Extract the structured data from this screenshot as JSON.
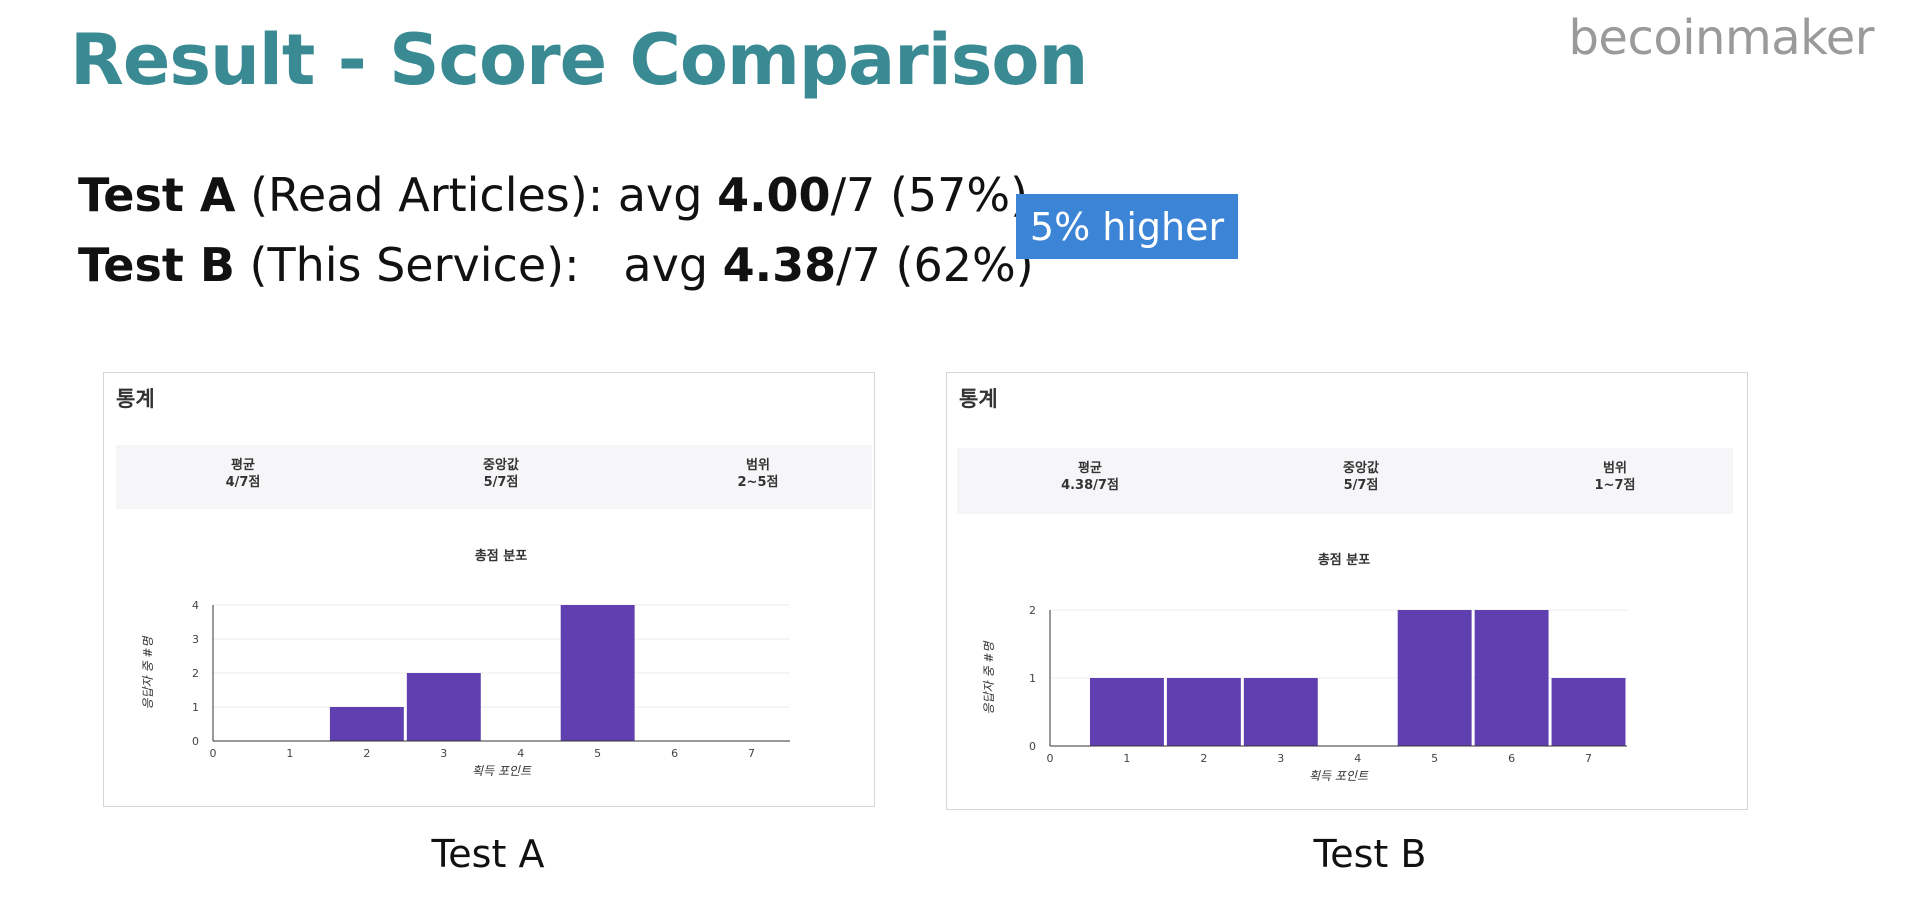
{
  "title": "Result - Score Comparison",
  "brand": "becoinmaker",
  "summary": {
    "test_a": {
      "name": "Test A",
      "desc": " (Read Articles): avg ",
      "avg": "4.00",
      "rest": "/7 (57%)"
    },
    "test_b": {
      "name": "Test B",
      "desc": " (This Service):   avg ",
      "avg": "4.38",
      "rest": "/7 (62%)"
    }
  },
  "highlight": "5% higher",
  "panels": [
    {
      "heading": "통계",
      "stats": [
        {
          "label": "평균",
          "value": "4/7점"
        },
        {
          "label": "중앙값",
          "value": "5/7점"
        },
        {
          "label": "범위",
          "value": "2~5점"
        }
      ],
      "chart_title": "총점 분포",
      "caption": "Test A"
    },
    {
      "heading": "통계",
      "stats": [
        {
          "label": "평균",
          "value": "4.38/7점"
        },
        {
          "label": "중앙값",
          "value": "5/7점"
        },
        {
          "label": "범위",
          "value": "1~7점"
        }
      ],
      "chart_title": "총점 분포",
      "caption": "Test B"
    }
  ],
  "chart_data": [
    {
      "type": "bar",
      "title": "총점 분포",
      "xlabel": "획득 포인트",
      "ylabel": "응답자 중 #명",
      "categories": [
        0,
        1,
        2,
        3,
        4,
        5,
        6,
        7
      ],
      "values": [
        0,
        0,
        1,
        2,
        0,
        4,
        0,
        0
      ],
      "ylim": [
        0,
        4
      ],
      "yticks": [
        0,
        1,
        2,
        3,
        4
      ],
      "color": "#6040b0",
      "grid": true
    },
    {
      "type": "bar",
      "title": "총점 분포",
      "xlabel": "획득 포인트",
      "ylabel": "응답자 중 #명",
      "categories": [
        0,
        1,
        2,
        3,
        4,
        5,
        6,
        7
      ],
      "values": [
        0,
        1,
        1,
        1,
        0,
        2,
        2,
        1
      ],
      "ylim": [
        0,
        2
      ],
      "yticks": [
        0,
        1,
        2
      ],
      "color": "#6040b0",
      "grid": true
    }
  ]
}
